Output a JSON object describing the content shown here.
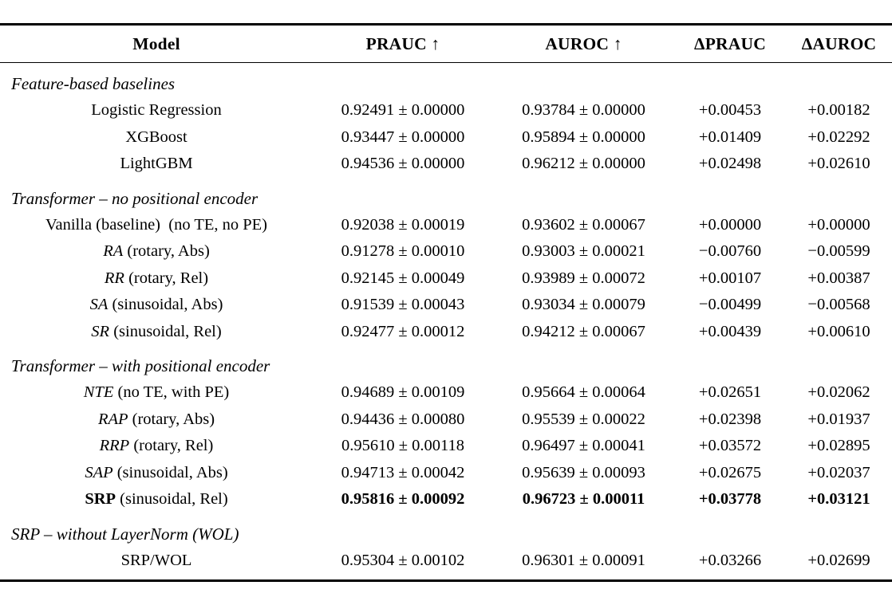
{
  "table": {
    "header": {
      "model": "Model",
      "prauc": "PRAUC ↑",
      "auroc": "AUROC ↑",
      "delta_prauc": "ΔPRAUC",
      "delta_auroc": "ΔAUROC"
    },
    "sections": [
      {
        "label": "Feature-based baselines",
        "rows": [
          {
            "model_prefix": "",
            "prefix_style": "normal",
            "model_rest": "Logistic Regression",
            "prauc": "0.92491 ± 0.00000",
            "auroc": "0.93784 ± 0.00000",
            "delta_prauc": "+0.00453",
            "delta_auroc": "+0.00182",
            "bold": false
          },
          {
            "model_prefix": "",
            "prefix_style": "normal",
            "model_rest": "XGBoost",
            "prauc": "0.93447 ± 0.00000",
            "auroc": "0.95894 ± 0.00000",
            "delta_prauc": "+0.01409",
            "delta_auroc": "+0.02292",
            "bold": false
          },
          {
            "model_prefix": "",
            "prefix_style": "normal",
            "model_rest": "LightGBM",
            "prauc": "0.94536 ± 0.00000",
            "auroc": "0.96212 ± 0.00000",
            "delta_prauc": "+0.02498",
            "delta_auroc": "+0.02610",
            "bold": false
          }
        ]
      },
      {
        "label": "Transformer – no positional encoder",
        "rows": [
          {
            "model_prefix": "",
            "prefix_style": "normal",
            "model_rest": "Vanilla (baseline) (no TE, no PE)",
            "prauc": "0.92038 ± 0.00019",
            "auroc": "0.93602 ± 0.00067",
            "delta_prauc": "+0.00000",
            "delta_auroc": "+0.00000",
            "bold": false
          },
          {
            "model_prefix": "RA",
            "prefix_style": "italic",
            "model_rest": " (rotary, Abs)",
            "prauc": "0.91278 ± 0.00010",
            "auroc": "0.93003 ± 0.00021",
            "delta_prauc": "−0.00760",
            "delta_auroc": "−0.00599",
            "bold": false
          },
          {
            "model_prefix": "RR",
            "prefix_style": "italic",
            "model_rest": " (rotary, Rel)",
            "prauc": "0.92145 ± 0.00049",
            "auroc": "0.93989 ± 0.00072",
            "delta_prauc": "+0.00107",
            "delta_auroc": "+0.00387",
            "bold": false
          },
          {
            "model_prefix": "SA",
            "prefix_style": "italic",
            "model_rest": " (sinusoidal, Abs)",
            "prauc": "0.91539 ± 0.00043",
            "auroc": "0.93034 ± 0.00079",
            "delta_prauc": "−0.00499",
            "delta_auroc": "−0.00568",
            "bold": false
          },
          {
            "model_prefix": "SR",
            "prefix_style": "italic",
            "model_rest": " (sinusoidal, Rel)",
            "prauc": "0.92477 ± 0.00012",
            "auroc": "0.94212 ± 0.00067",
            "delta_prauc": "+0.00439",
            "delta_auroc": "+0.00610",
            "bold": false
          }
        ]
      },
      {
        "label": "Transformer – with positional encoder",
        "rows": [
          {
            "model_prefix": "NTE",
            "prefix_style": "italic",
            "model_rest": " (no TE, with PE)",
            "prauc": "0.94689 ± 0.00109",
            "auroc": "0.95664 ± 0.00064",
            "delta_prauc": "+0.02651",
            "delta_auroc": "+0.02062",
            "bold": false
          },
          {
            "model_prefix": "RAP",
            "prefix_style": "italic",
            "model_rest": " (rotary, Abs)",
            "prauc": "0.94436 ± 0.00080",
            "auroc": "0.95539 ± 0.00022",
            "delta_prauc": "+0.02398",
            "delta_auroc": "+0.01937",
            "bold": false
          },
          {
            "model_prefix": "RRP",
            "prefix_style": "italic",
            "model_rest": " (rotary, Rel)",
            "prauc": "0.95610 ± 0.00118",
            "auroc": "0.96497 ± 0.00041",
            "delta_prauc": "+0.03572",
            "delta_auroc": "+0.02895",
            "bold": false
          },
          {
            "model_prefix": "SAP",
            "prefix_style": "italic",
            "model_rest": " (sinusoidal, Abs)",
            "prauc": "0.94713 ± 0.00042",
            "auroc": "0.95639 ± 0.00093",
            "delta_prauc": "+0.02675",
            "delta_auroc": "+0.02037",
            "bold": false
          },
          {
            "model_prefix": "SRP",
            "prefix_style": "bold",
            "model_rest": " (sinusoidal, Rel)",
            "prauc": "0.95816 ± 0.00092",
            "auroc": "0.96723 ± 0.00011",
            "delta_prauc": "+0.03778",
            "delta_auroc": "+0.03121",
            "bold": true
          }
        ]
      },
      {
        "label": "SRP – without LayerNorm (WOL)",
        "rows": [
          {
            "model_prefix": "",
            "prefix_style": "normal",
            "model_rest": "SRP/WOL",
            "prauc": "0.95304 ± 0.00102",
            "auroc": "0.96301 ± 0.00091",
            "delta_prauc": "+0.03266",
            "delta_auroc": "+0.02699",
            "bold": false
          }
        ]
      }
    ]
  }
}
